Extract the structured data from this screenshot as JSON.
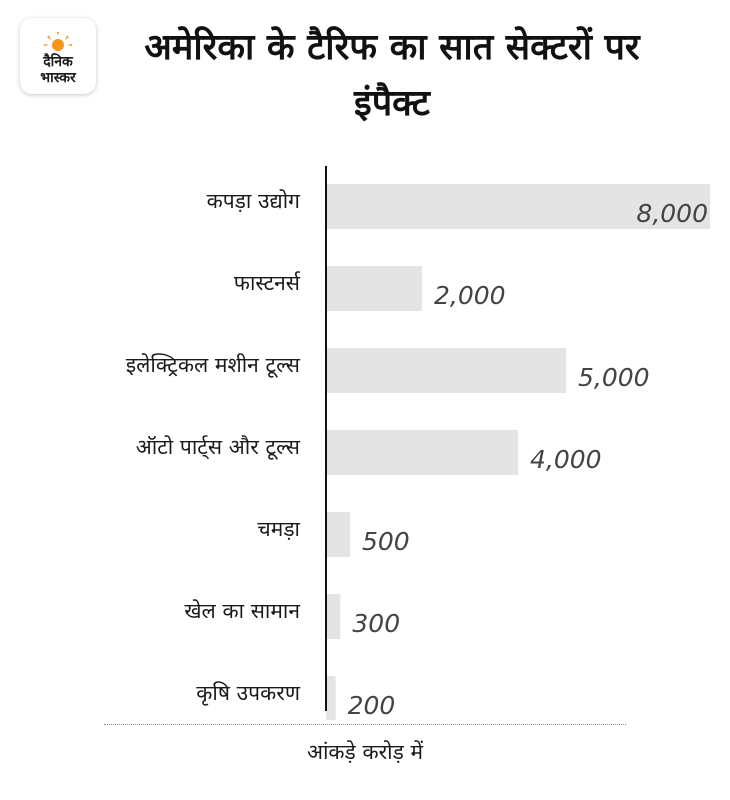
{
  "logo": {
    "line1": "दैनिक",
    "line2": "भास्कर",
    "accent_color": "#f7941d"
  },
  "title": "अमेरिका के टैरिफ का सात सेक्टरों पर इंपैक्ट",
  "unit_note": "आंकड़े करोड़ में",
  "chart_data": {
    "type": "bar",
    "orientation": "horizontal",
    "categories": [
      "कपड़ा उद्योग",
      "फास्टनर्स",
      "इलेक्ट्रिकल मशीन टूल्स",
      "ऑटो पार्ट्स और टूल्स",
      "चमड़ा",
      "खेल का सामान",
      "कृषि उपकरण"
    ],
    "values": [
      8000,
      2000,
      5000,
      4000,
      500,
      300,
      200
    ],
    "value_labels": [
      "8,000",
      "2,000",
      "5,000",
      "4,000",
      "500",
      "300",
      "200"
    ],
    "xlim": [
      0,
      8000
    ],
    "bar_color": "#e4e4e4",
    "axis_color": "#111111",
    "grid": false,
    "legend": "none"
  }
}
